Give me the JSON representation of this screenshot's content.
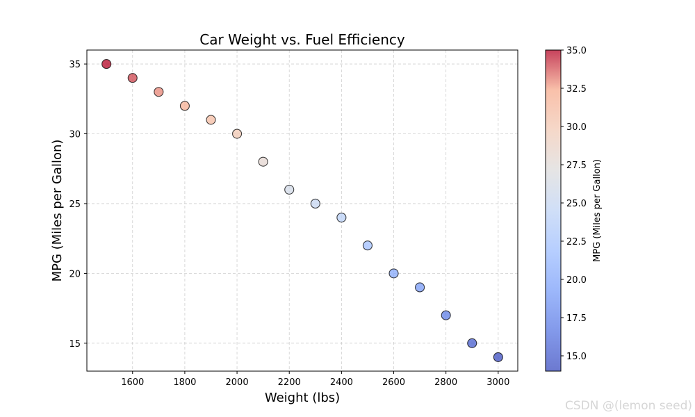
{
  "chart_data": {
    "type": "scatter",
    "title": "Car Weight vs. Fuel Efficiency",
    "xlabel": "Weight (lbs)",
    "ylabel": "MPG (Miles per Gallon)",
    "x": [
      1500,
      1600,
      1700,
      1800,
      1900,
      2000,
      2100,
      2200,
      2300,
      2400,
      2500,
      2600,
      2700,
      2800,
      2900,
      3000
    ],
    "y": [
      35,
      34,
      33,
      32,
      31,
      30,
      28,
      26,
      25,
      24,
      22,
      20,
      19,
      17,
      15,
      14
    ],
    "xlim": [
      1425,
      3075
    ],
    "ylim": [
      13,
      36
    ],
    "xticks": [
      1600,
      1800,
      2000,
      2200,
      2400,
      2600,
      2800,
      3000
    ],
    "yticks": [
      15,
      20,
      25,
      30,
      35
    ],
    "grid": true,
    "colormap": "coolwarm",
    "color_by": "y",
    "colorbar": {
      "label": "MPG (Miles per Gallon)",
      "range": [
        14,
        35
      ],
      "ticks": [
        15.0,
        17.5,
        20.0,
        22.5,
        25.0,
        27.5,
        30.0,
        32.5,
        35.0
      ],
      "tick_labels": [
        "15.0",
        "17.5",
        "20.0",
        "22.5",
        "25.0",
        "27.5",
        "30.0",
        "32.5",
        "35.0"
      ]
    }
  },
  "watermark": "CSDN @(lemon seed)"
}
